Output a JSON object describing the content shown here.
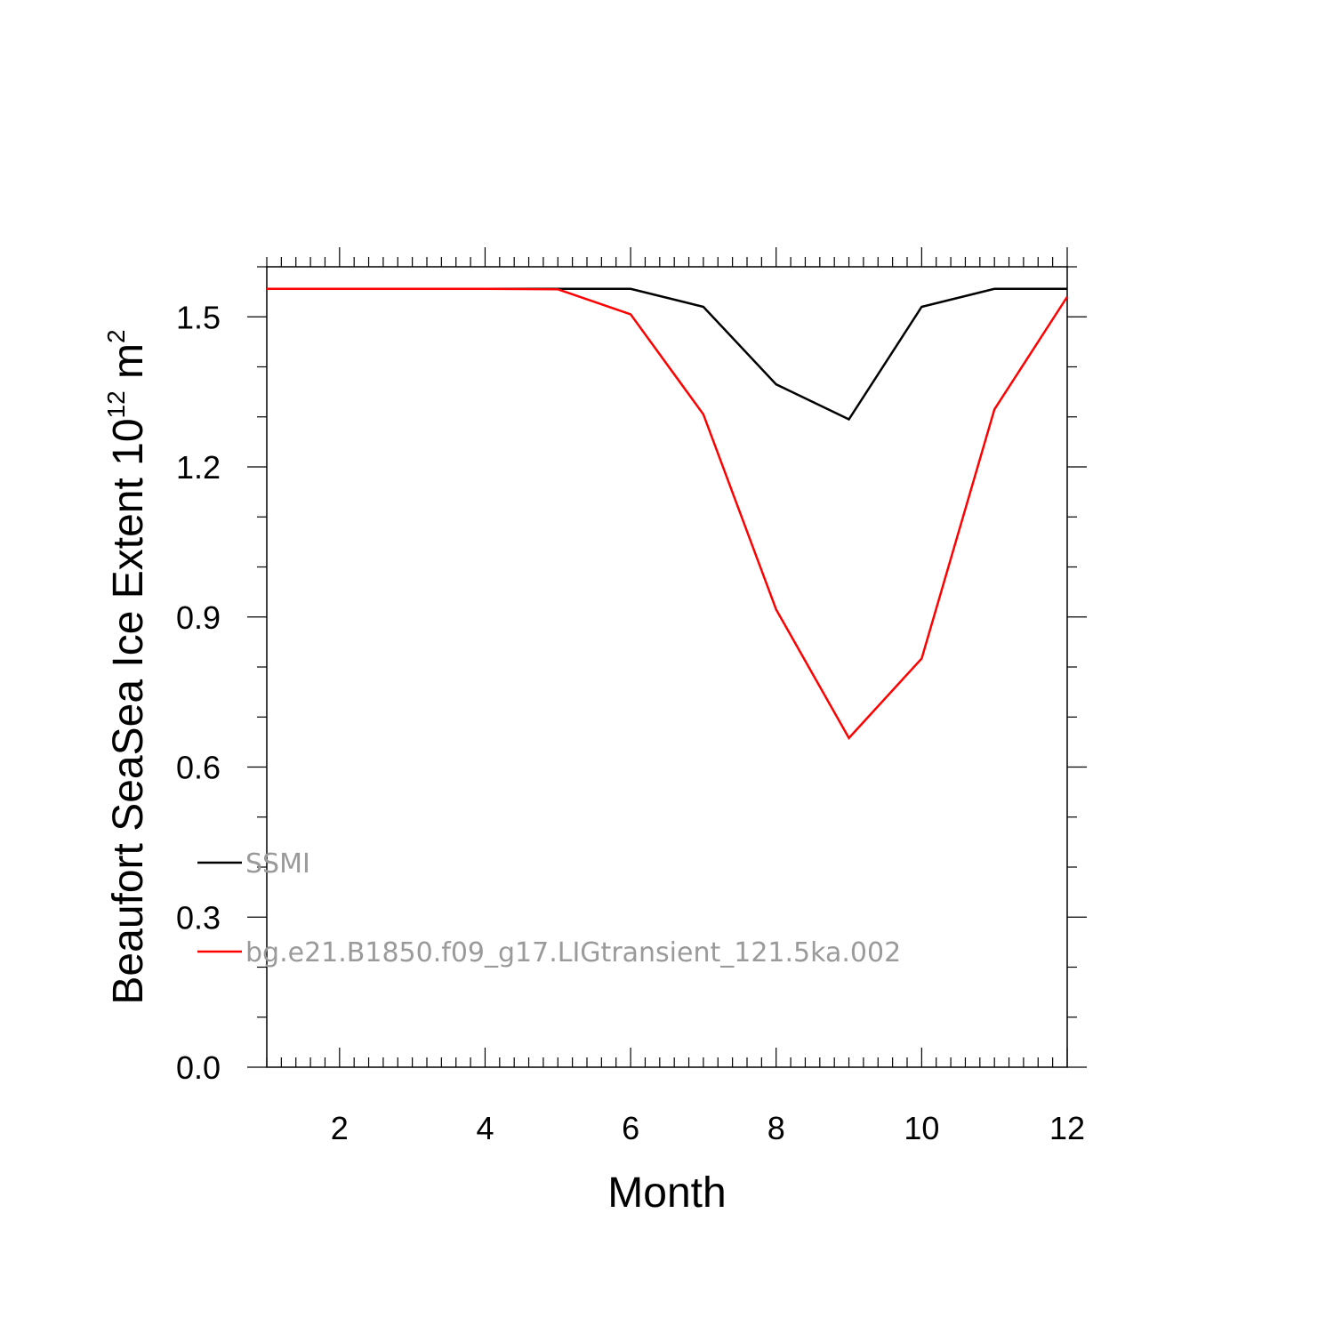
{
  "chart_data": {
    "type": "line",
    "xlabel": "Month",
    "ylabel": {
      "text": "Beaufort SeaSea Ice Extent 10",
      "superscript": "12",
      "unit": " m",
      "unit_superscript": "2"
    },
    "xlim": [
      1,
      12
    ],
    "ylim": [
      0.0,
      1.6
    ],
    "x_major_ticks": [
      2,
      4,
      6,
      8,
      10,
      12
    ],
    "x_tick_labels": [
      "2",
      "4",
      "6",
      "8",
      "10",
      "12"
    ],
    "y_major_ticks": [
      0.0,
      0.3,
      0.6,
      0.9,
      1.2,
      1.5
    ],
    "y_tick_labels": [
      "0.0",
      "0.3",
      "0.6",
      "0.9",
      "1.2",
      "1.5"
    ],
    "grid": false,
    "legend_position": "lower-left",
    "x": [
      1,
      2,
      3,
      4,
      5,
      6,
      7,
      8,
      9,
      10,
      11,
      12
    ],
    "series": [
      {
        "name": "SSMI",
        "color": "#000000",
        "values": [
          1.556,
          1.556,
          1.556,
          1.556,
          1.556,
          1.556,
          1.52,
          1.365,
          1.295,
          1.52,
          1.556,
          1.556
        ]
      },
      {
        "name": "bg.e21.B1850.f09_g17.LIGtransient_121.5ka.002",
        "color": "#ff0000",
        "values": [
          1.556,
          1.556,
          1.556,
          1.556,
          1.555,
          1.505,
          1.305,
          0.915,
          0.658,
          0.817,
          1.315,
          1.54
        ]
      }
    ]
  }
}
